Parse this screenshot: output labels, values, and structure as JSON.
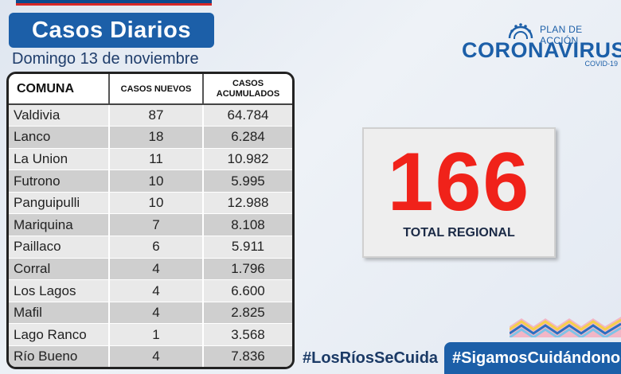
{
  "header": {
    "title": "Casos Diarios",
    "date": "Domingo 13 de noviembre"
  },
  "table": {
    "columns": [
      "COMUNA",
      "CASOS NUEVOS",
      "CASOS",
      "ACUMULADOS"
    ],
    "rows": [
      {
        "comuna": "Valdivia",
        "nuevos": "87",
        "acumulados": "64.784"
      },
      {
        "comuna": "Lanco",
        "nuevos": "18",
        "acumulados": "6.284"
      },
      {
        "comuna": "La Union",
        "nuevos": "11",
        "acumulados": "10.982"
      },
      {
        "comuna": "Futrono",
        "nuevos": "10",
        "acumulados": "5.995"
      },
      {
        "comuna": "Panguipulli",
        "nuevos": "10",
        "acumulados": "12.988"
      },
      {
        "comuna": "Mariquina",
        "nuevos": "7",
        "acumulados": "8.108"
      },
      {
        "comuna": "Paillaco",
        "nuevos": "6",
        "acumulados": "5.911"
      },
      {
        "comuna": "Corral",
        "nuevos": "4",
        "acumulados": "1.796"
      },
      {
        "comuna": "Los Lagos",
        "nuevos": "4",
        "acumulados": "6.600"
      },
      {
        "comuna": "Mafil",
        "nuevos": "4",
        "acumulados": "2.825"
      },
      {
        "comuna": "Lago Ranco",
        "nuevos": "1",
        "acumulados": "3.568"
      },
      {
        "comuna": "Río Bueno",
        "nuevos": "4",
        "acumulados": "7.836"
      }
    ]
  },
  "logo": {
    "plan": "PLAN DE ACCIÓN",
    "name": "CORONAVIRUS",
    "sub": "COVID-19",
    "icon": "virus-icon"
  },
  "total": {
    "value": "166",
    "label": "TOTAL REGIONAL"
  },
  "hashtags": {
    "region": "#LosRíosSeCuida",
    "national": "#SigamosCuidándonos"
  },
  "colors": {
    "brand_blue": "#1c5fa8",
    "accent_red": "#f0221a",
    "flag_red": "#d62828"
  }
}
